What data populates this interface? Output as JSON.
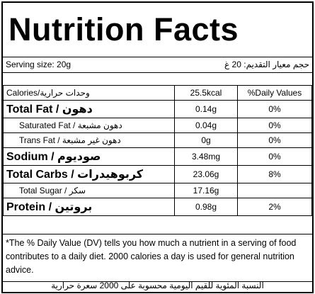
{
  "header": {
    "title": "Nutrition Facts"
  },
  "serving": {
    "size": "Serving size: 20g",
    "size_ar": "حجم معيار التقديم: 20 غ"
  },
  "table": {
    "columns": [
      "Calories/وحدات حرارية",
      "25.5kcal",
      "%Daily Values"
    ],
    "rows": [
      [
        "Total Fat / دهون",
        "0.14g",
        "0%"
      ],
      [
        "Saturated Fat / دهون مشبعة",
        "0.04g",
        "0%"
      ],
      [
        "Trans Fat / دهون غير مشبعة",
        "0g",
        "0%"
      ],
      [
        "Sodium / صوديوم",
        "3.48mg",
        "0%"
      ],
      [
        "Total Carbs / كربوهيدرات",
        "23.06g",
        "8%"
      ],
      [
        "Total Sugar / سكر",
        "17.16g"
      ],
      [
        "Protein / بروتين",
        "0.98g",
        "2%"
      ]
    ]
  },
  "footnote": {
    "text": "*The % Daily Value (DV) tells you how much a nutrient in a serving of food contributes to a daily diet. 2000 calories a day is used for general nutrition advice.",
    "text_ar": "النسبة المئوية للقيم اليومية محسوبة على 2000 سعرة حرارية"
  }
}
